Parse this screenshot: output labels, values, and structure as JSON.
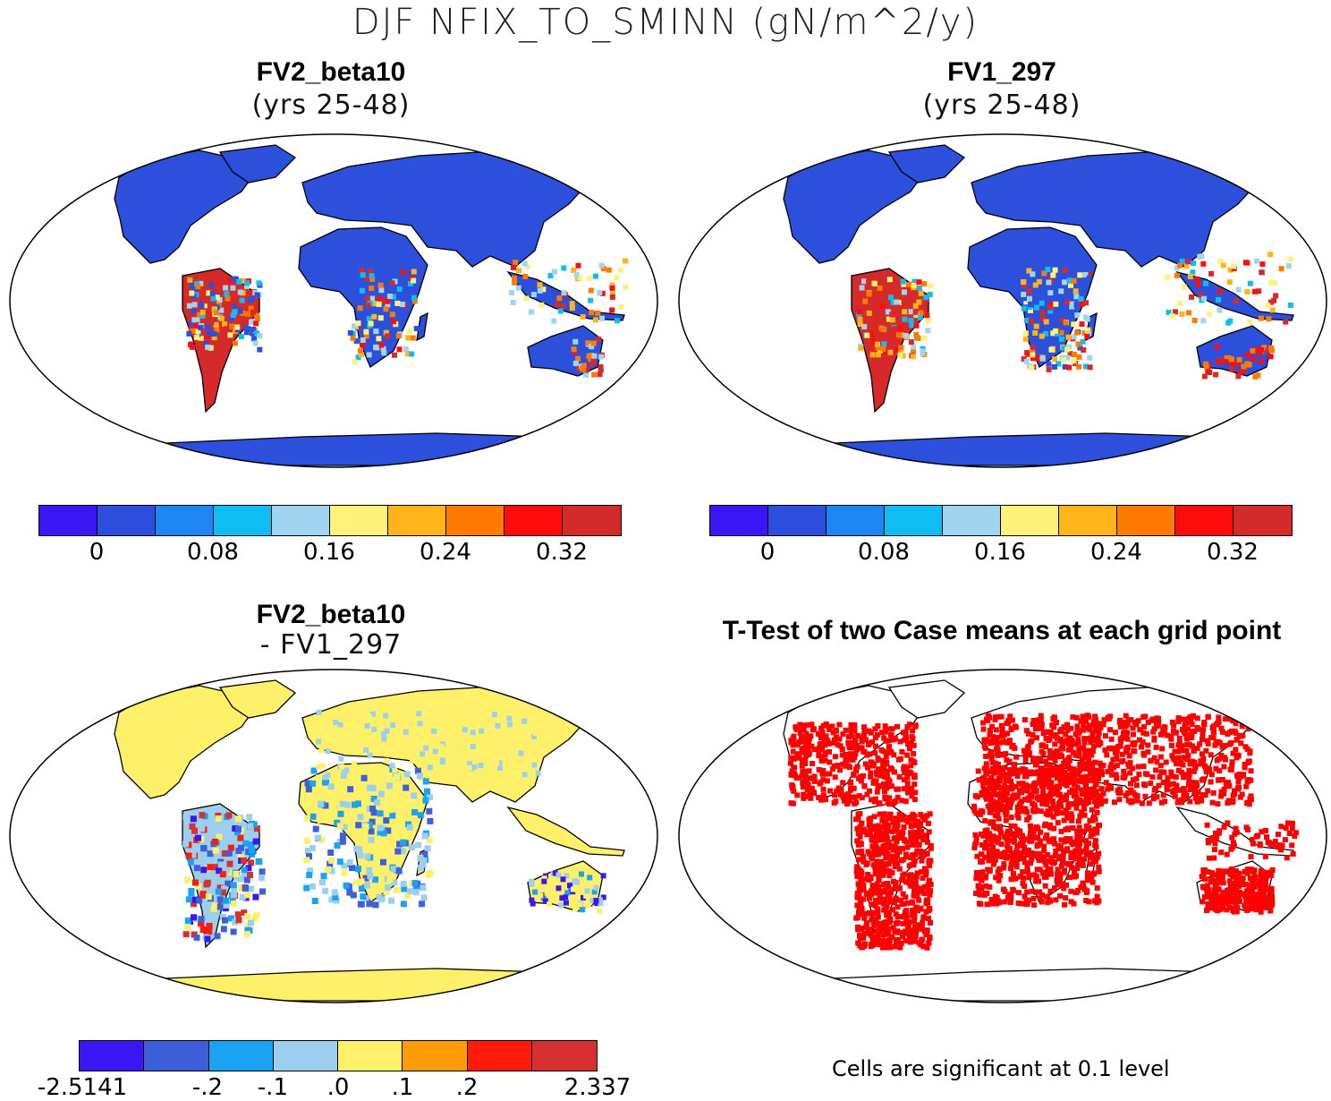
{
  "title": "DJF NFIX_TO_SMINN (gN/m^2/y)",
  "panels": [
    {
      "title": "FV2_beta10",
      "subtitle": "(yrs 25-48)"
    },
    {
      "title": "FV1_297",
      "subtitle": "(yrs 25-48)"
    },
    {
      "title": "FV2_beta10",
      "subtitle": "- FV1_297"
    },
    {
      "title": "T-Test of two Case means at each grid point",
      "subtitle": ""
    }
  ],
  "colorbar_abs": {
    "colors": [
      "#3a16f5",
      "#2b4fdc",
      "#1e86f2",
      "#10bdf2",
      "#a0d4ef",
      "#fff27a",
      "#ffb419",
      "#ff7a00",
      "#ff0d0d",
      "#d52a2a"
    ],
    "labels": [
      "0",
      "0.08",
      "0.16",
      "0.24",
      "0.32"
    ]
  },
  "colorbar_diff": {
    "colors": [
      "#3a16f5",
      "#3e5fda",
      "#1aa3f2",
      "#9ccfee",
      "#fff06a",
      "#ff9d08",
      "#ff1a0a",
      "#d63030"
    ],
    "labels": [
      "-2.5141",
      "-.2",
      "-.1",
      ".0",
      ".1",
      ".2",
      "2.337"
    ]
  },
  "map_colors": {
    "land_abs": "#2d50dc",
    "hot_abs": "#d62a2a",
    "land_diff": "#fff06a",
    "diff_mixed": "#9ccfee",
    "ttest": "#ff0000",
    "coast": "#000000"
  },
  "note": "Cells are significant at 0.1 level"
}
